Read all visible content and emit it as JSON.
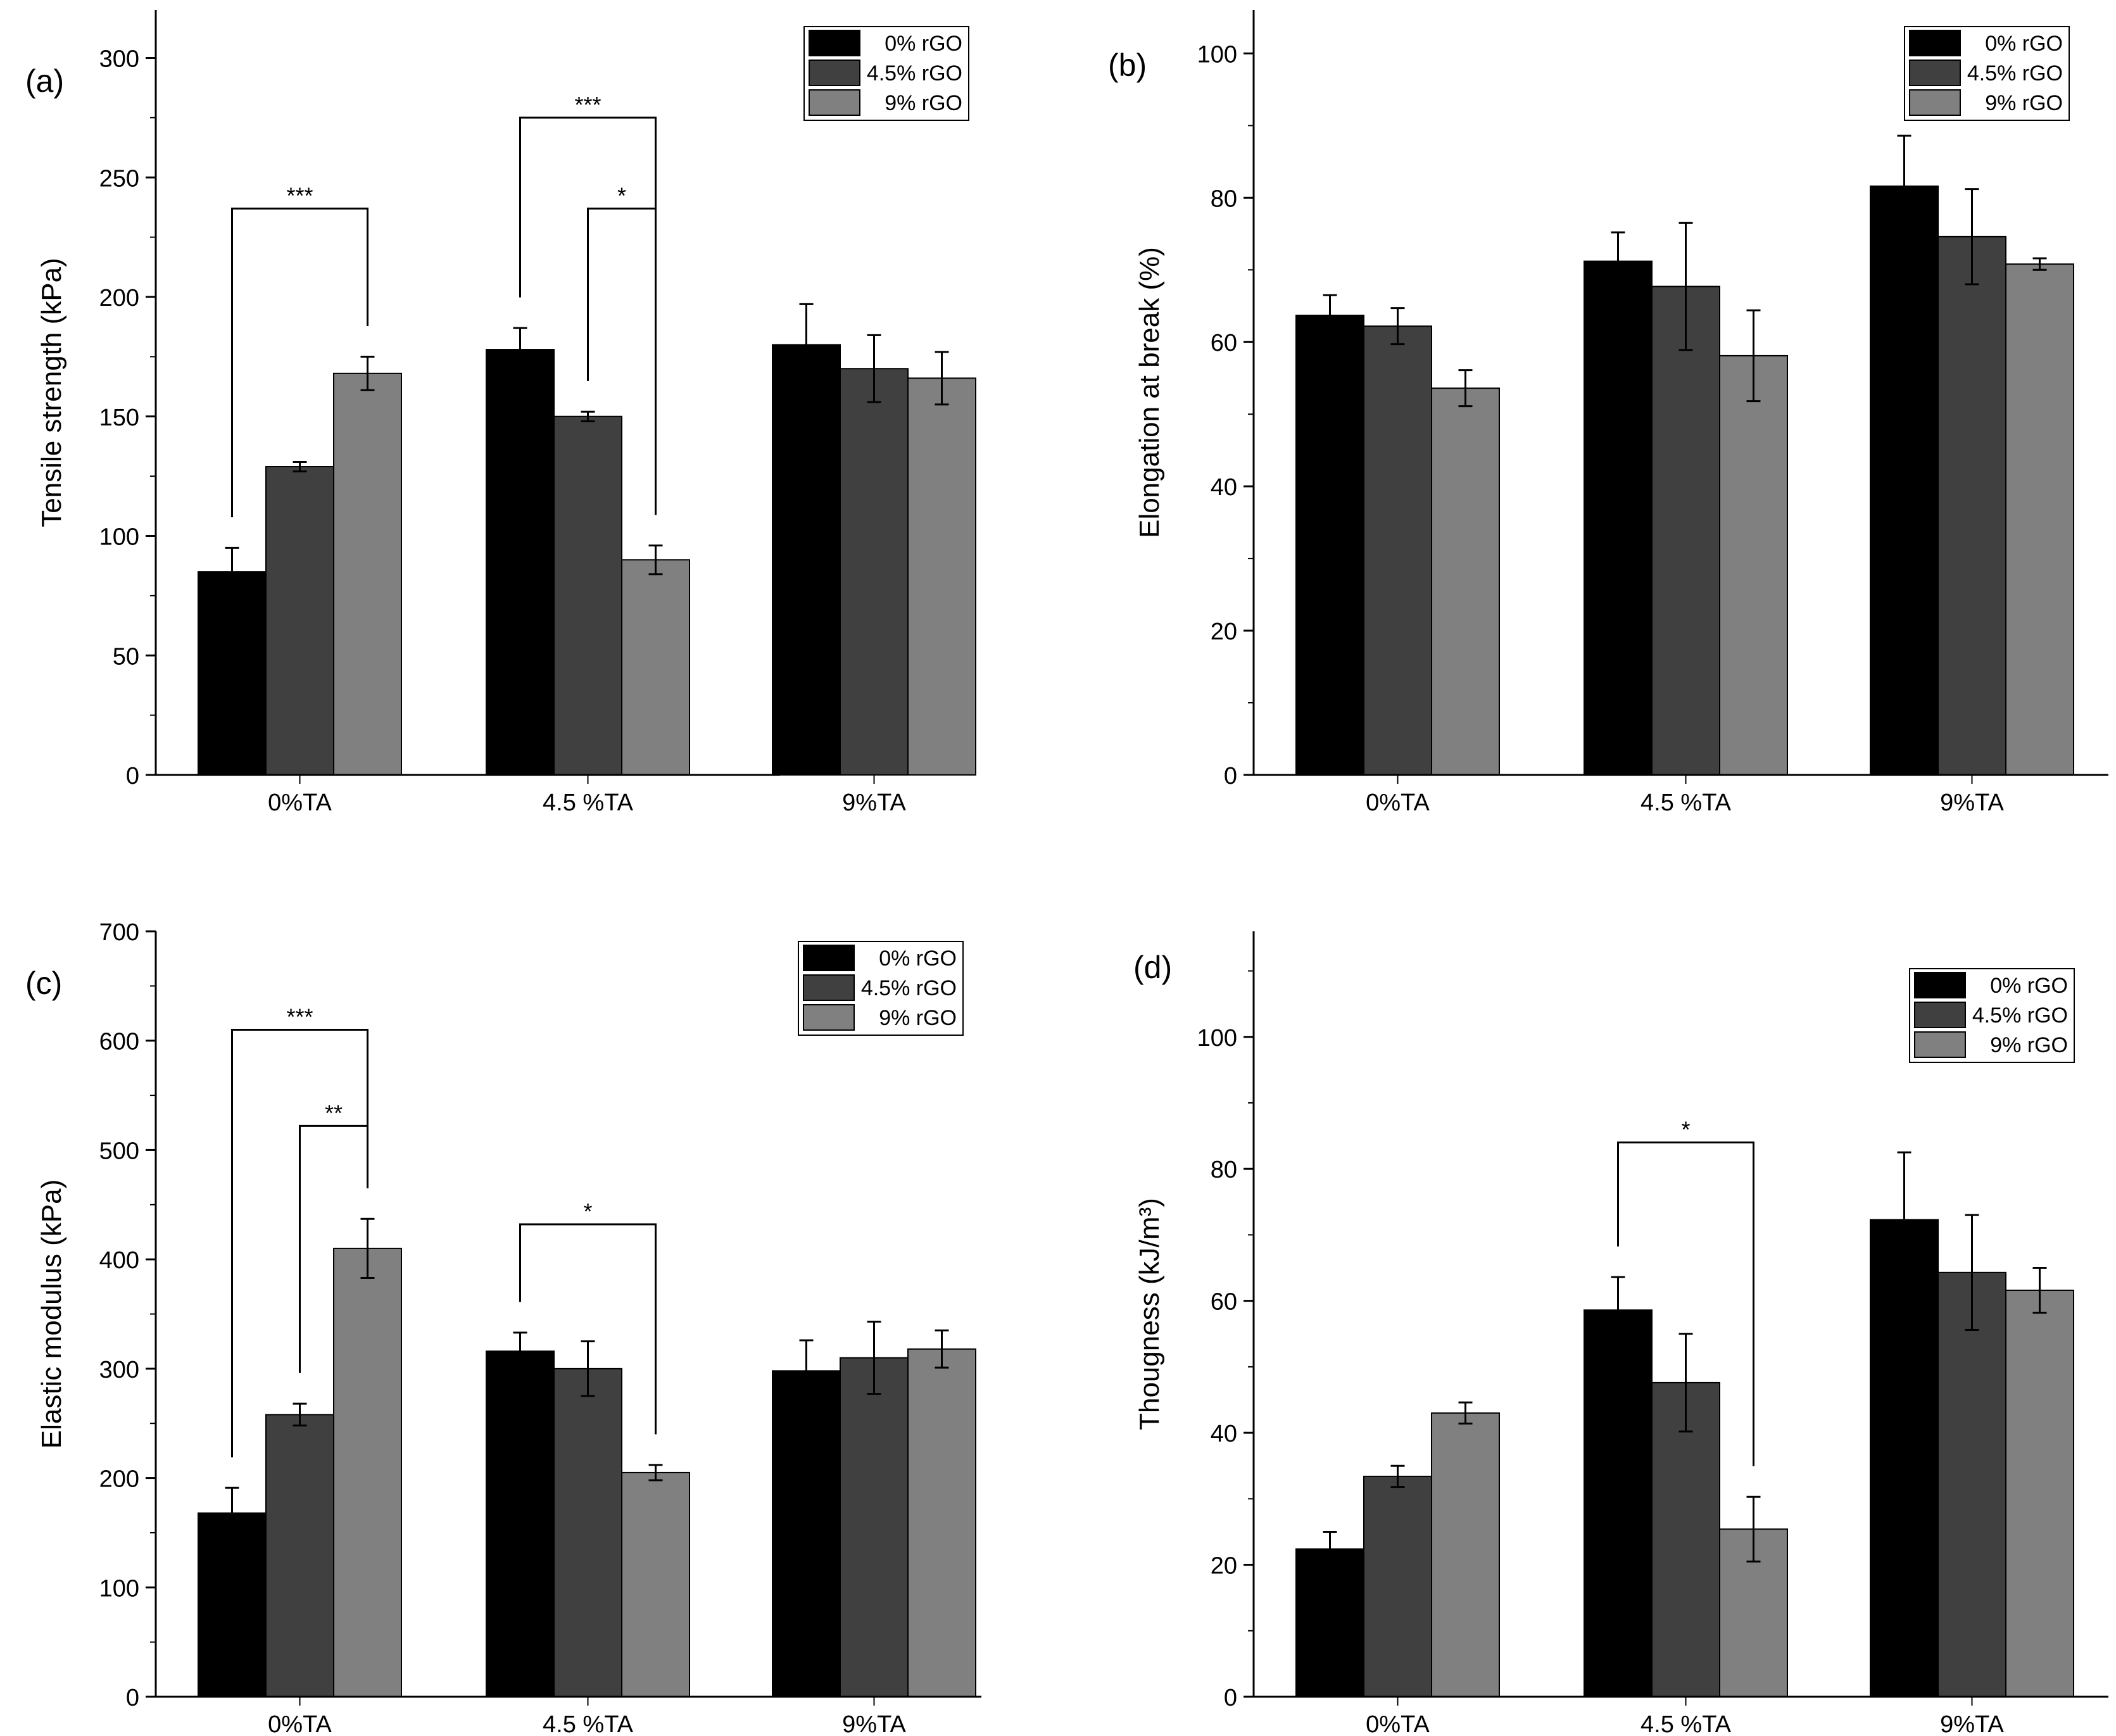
{
  "figure": {
    "series_colors": [
      "#000000",
      "#404040",
      "#808080"
    ]
  },
  "chart_data": [
    {
      "type": "bar",
      "panel_label": "(a)",
      "ylabel": "Tensile strength (kPa)",
      "xlabel": "",
      "categories": [
        "0%TA",
        "4.5 %TA",
        "9%TA"
      ],
      "ylim": [
        0,
        320
      ],
      "yticks": [
        0,
        50,
        100,
        150,
        200,
        250,
        300
      ],
      "minor_step": 25,
      "legend_position": "top-right",
      "series": [
        {
          "name": "0% rGO",
          "values": [
            85,
            178,
            180
          ],
          "errors": [
            10,
            9,
            17
          ]
        },
        {
          "name": "4.5% rGO",
          "values": [
            129,
            150,
            170
          ],
          "errors": [
            2,
            2,
            14
          ]
        },
        {
          "name": "9% rGO",
          "values": [
            168,
            90,
            166
          ],
          "errors": [
            7,
            6,
            11
          ]
        }
      ],
      "annotations": [
        {
          "label": "***",
          "from": [
            0,
            0
          ],
          "to": [
            0,
            2
          ],
          "level": 237
        },
        {
          "label": "***",
          "from": [
            1,
            0
          ],
          "to": [
            1,
            2
          ],
          "level": 275
        },
        {
          "label": "*",
          "from": [
            1,
            1
          ],
          "to": [
            1,
            2
          ],
          "level": 237
        }
      ]
    },
    {
      "type": "bar",
      "panel_label": "(b)",
      "ylabel": "Elongation at break (%)",
      "xlabel": "",
      "categories": [
        "0%TA",
        "4.5 %TA",
        "9%TA"
      ],
      "ylim": [
        0,
        106
      ],
      "yticks": [
        0,
        20,
        40,
        60,
        80,
        100
      ],
      "minor_step": 10,
      "legend_position": "top-right",
      "series": [
        {
          "name": "0% rGO",
          "values": [
            63.7,
            71.2,
            81.6
          ],
          "errors": [
            2.8,
            4.0,
            7.0
          ]
        },
        {
          "name": "4.5% rGO",
          "values": [
            62.2,
            67.7,
            74.6
          ],
          "errors": [
            2.5,
            8.8,
            6.6
          ]
        },
        {
          "name": "9% rGO",
          "values": [
            53.6,
            58.1,
            70.8
          ],
          "errors": [
            2.5,
            6.3,
            0.8
          ]
        }
      ],
      "annotations": []
    },
    {
      "type": "bar",
      "panel_label": "(c)",
      "ylabel": "Elastic modulus (kPa)",
      "xlabel": "",
      "categories": [
        "0%TA",
        "4.5 %TA",
        "9%TA"
      ],
      "ylim": [
        0,
        700
      ],
      "yticks": [
        0,
        100,
        200,
        300,
        400,
        500,
        600,
        700
      ],
      "minor_step": 50,
      "legend_position": "top-right",
      "series": [
        {
          "name": "0% rGO",
          "values": [
            168,
            316,
            298
          ],
          "errors": [
            23,
            17,
            28
          ]
        },
        {
          "name": "4.5% rGO",
          "values": [
            258,
            300,
            310
          ],
          "errors": [
            10,
            25,
            33
          ]
        },
        {
          "name": "9% rGO",
          "values": [
            410,
            205,
            318
          ],
          "errors": [
            27,
            7,
            17
          ]
        }
      ],
      "annotations": [
        {
          "label": "***",
          "from": [
            0,
            0
          ],
          "to": [
            0,
            2
          ],
          "level": 610
        },
        {
          "label": "**",
          "from": [
            0,
            1
          ],
          "to": [
            0,
            2
          ],
          "level": 522
        },
        {
          "label": "*",
          "from": [
            1,
            0
          ],
          "to": [
            1,
            2
          ],
          "level": 432
        }
      ]
    },
    {
      "type": "bar",
      "panel_label": "(d)",
      "ylabel": "Thougness (kJ/m³)",
      "xlabel": "",
      "categories": [
        "0%TA",
        "4.5 %TA",
        "9%TA"
      ],
      "ylim": [
        0,
        116
      ],
      "yticks": [
        0,
        20,
        40,
        60,
        80,
        100
      ],
      "minor_step": 10,
      "legend_position": "top-right",
      "series": [
        {
          "name": "0% rGO",
          "values": [
            22.4,
            58.6,
            72.3
          ],
          "errors": [
            2.6,
            5.0,
            10.2
          ]
        },
        {
          "name": "4.5% rGO",
          "values": [
            33.4,
            47.6,
            64.3
          ],
          "errors": [
            1.6,
            7.4,
            8.7
          ]
        },
        {
          "name": "9% rGO",
          "values": [
            43.0,
            25.4,
            61.6
          ],
          "errors": [
            1.6,
            4.9,
            3.4
          ]
        }
      ],
      "annotations": [
        {
          "label": "*",
          "from": [
            1,
            0
          ],
          "to": [
            1,
            2
          ],
          "level": 84
        }
      ]
    }
  ]
}
